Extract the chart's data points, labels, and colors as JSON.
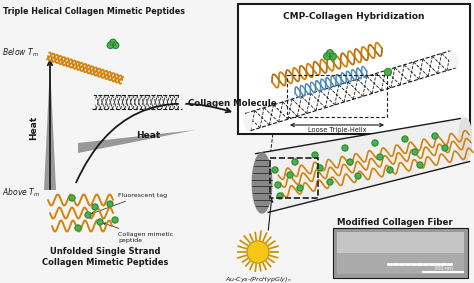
{
  "bg_color": "#f5f5f5",
  "top_left_title": "Triple Helical Collagen Mimetic Peptides",
  "below_tm_label": "Below $T_m$",
  "above_tm_label": "Above $T_m$",
  "collagen_molecule_label": "Collagen Molecule",
  "heat_label_v": "Heat",
  "heat_label_h": "Heat",
  "fluorescent_tag_label": "Fluorescent tag",
  "collagen_mimetic_label": "Collagen mimetic\npeptide",
  "unfolded_label": "Unfolded Single Strand\nCollagen Mimetic Peptides",
  "cmp_hybridization_title": "CMP-Collagen Hybridization",
  "loose_triple_helix_label": "Loose Triple-Helix",
  "modified_collagen_fiber_label": "Modified Collagen Fiber",
  "au_cys_label": "Au-Cys-(ProHypGly)",
  "scale_bar_label": "300 nm",
  "orange": "#D4820A",
  "black": "#1a1a1a",
  "green": "#4CAF50",
  "dark_green": "#2d7a2d",
  "blue": "#5B8DB8",
  "gray_dark": "#555555",
  "gray_mid": "#888888",
  "gray_light": "#bbbbbb",
  "yellow": "#F5C518",
  "yellow_dark": "#C8960A",
  "white": "#ffffff",
  "box_bg": "#f0f0f0"
}
